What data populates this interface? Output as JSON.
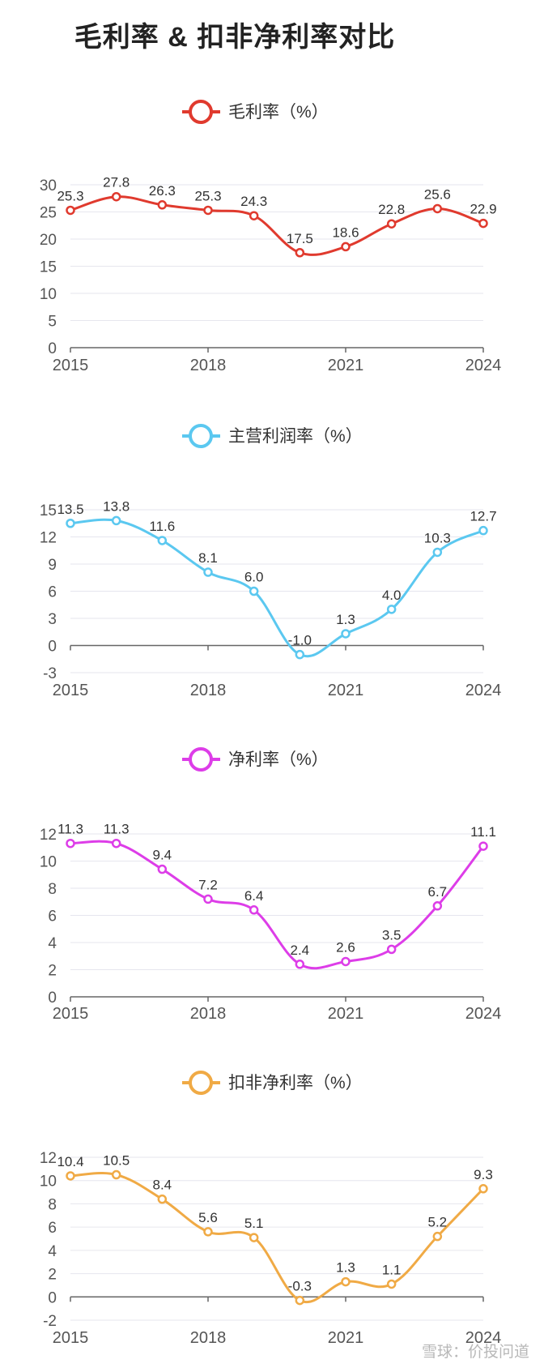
{
  "page_title": "毛利率 & 扣非净利率对比",
  "watermark": "雪球：价投问道",
  "chart_data": [
    {
      "type": "line",
      "title": "毛利率（%）",
      "color": "#e03a2e",
      "x": [
        2015,
        2016,
        2017,
        2018,
        2019,
        2020,
        2021,
        2022,
        2023,
        2024
      ],
      "values": [
        25.3,
        27.8,
        26.3,
        25.3,
        24.3,
        17.5,
        18.6,
        22.8,
        25.6,
        22.9
      ],
      "value_labels": [
        "25.3",
        "27.8",
        "26.3",
        "25.3",
        "24.3",
        "17.5",
        "18.6",
        "22.8",
        "25.6",
        "22.9"
      ],
      "yticks": [
        "0",
        "5",
        "10",
        "15",
        "20",
        "25",
        "30"
      ],
      "ylim": [
        0,
        30
      ],
      "xticks": [
        "2015",
        "2018",
        "2021",
        "2024"
      ]
    },
    {
      "type": "line",
      "title": "主营利润率（%）",
      "color": "#5bc8f0",
      "x": [
        2015,
        2016,
        2017,
        2018,
        2019,
        2020,
        2021,
        2022,
        2023,
        2024
      ],
      "values": [
        13.5,
        13.8,
        11.6,
        8.1,
        6.0,
        -1.0,
        1.3,
        4.0,
        10.3,
        12.7
      ],
      "value_labels": [
        "13.5",
        "13.8",
        "11.6",
        "8.1",
        "6.0",
        "-1.0",
        "1.3",
        "4.0",
        "10.3",
        "12.7"
      ],
      "yticks": [
        "-3",
        "0",
        "3",
        "6",
        "9",
        "12",
        "15"
      ],
      "ylim": [
        -3,
        15
      ],
      "xticks": [
        "2015",
        "2018",
        "2021",
        "2024"
      ]
    },
    {
      "type": "line",
      "title": "净利率（%）",
      "color": "#dd3de8",
      "x": [
        2015,
        2016,
        2017,
        2018,
        2019,
        2020,
        2021,
        2022,
        2023,
        2024
      ],
      "values": [
        11.3,
        11.3,
        9.4,
        7.2,
        6.4,
        2.4,
        2.6,
        3.5,
        6.7,
        11.1
      ],
      "value_labels": [
        "11.3",
        "11.3",
        "9.4",
        "7.2",
        "6.4",
        "2.4",
        "2.6",
        "3.5",
        "6.7",
        "11.1"
      ],
      "yticks": [
        "0",
        "2",
        "4",
        "6",
        "8",
        "10",
        "12"
      ],
      "ylim": [
        0,
        12
      ],
      "xticks": [
        "2015",
        "2018",
        "2021",
        "2024"
      ]
    },
    {
      "type": "line",
      "title": "扣非净利率（%）",
      "color": "#f0aa45",
      "x": [
        2015,
        2016,
        2017,
        2018,
        2019,
        2020,
        2021,
        2022,
        2023,
        2024
      ],
      "values": [
        10.4,
        10.5,
        8.4,
        5.6,
        5.1,
        -0.3,
        1.3,
        1.1,
        5.2,
        9.3
      ],
      "value_labels": [
        "10.4",
        "10.5",
        "8.4",
        "5.6",
        "5.1",
        "-0.3",
        "1.3",
        "1.1",
        "5.2",
        "9.3"
      ],
      "yticks": [
        "-2",
        "0",
        "2",
        "4",
        "6",
        "8",
        "10",
        "12"
      ],
      "ylim": [
        -2,
        12
      ],
      "xticks": [
        "2015",
        "2018",
        "2021",
        "2024"
      ]
    }
  ]
}
